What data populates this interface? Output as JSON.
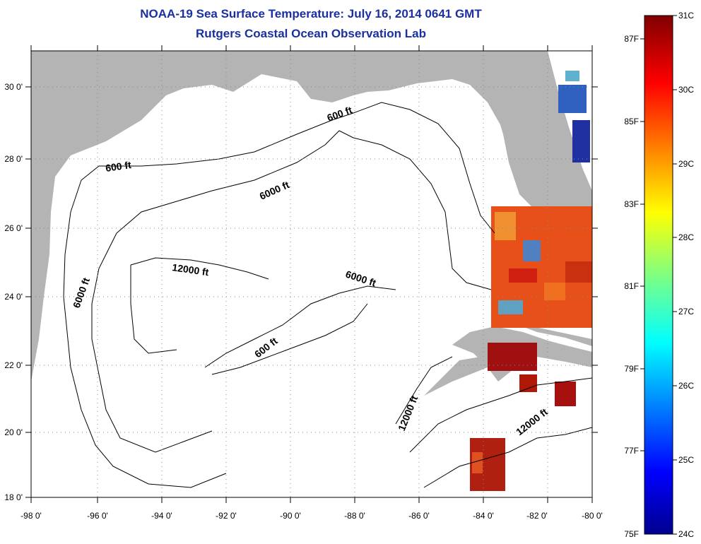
{
  "title": "NOAA-19 Sea Surface Temperature:  July 16, 2014 0641 GMT",
  "subtitle": "Rutgers Coastal Ocean Observation Lab",
  "map": {
    "lon_ticks": [
      "-98 0'",
      "-96 0'",
      "-94 0'",
      "-92 0'",
      "-90 0'",
      "-88 0'",
      "-86 0'",
      "-84 0'",
      "-82 0'",
      "-80 0'"
    ],
    "lat_ticks": [
      "30 0'",
      "28 0'",
      "26 0'",
      "24 0'",
      "22 0'",
      "20 0'",
      "18 0'"
    ],
    "contour_labels": {
      "c600_north": "600 ft",
      "c600_nw": "600 ft",
      "c6000_north": "6000 ft",
      "c6000_west": "6000 ft",
      "c12000_central": "12000 ft",
      "c6000_south": "6000 ft",
      "c600_south": "600 ft",
      "c12000_straits": "12000 ft",
      "c12000_caribbean": "12000 ft"
    },
    "colors": {
      "land": "#b4b4b4",
      "water": "#ffffff",
      "contour": "#000000",
      "grid": "#888888"
    }
  },
  "colorbar": {
    "fahrenheit": [
      "87F",
      "85F",
      "83F",
      "81F",
      "79F",
      "77F",
      "75F"
    ],
    "celsius": [
      "31C",
      "30C",
      "29C",
      "28C",
      "27C",
      "26C",
      "25C",
      "24C"
    ],
    "range_c": [
      24,
      31
    ],
    "range_f": [
      75,
      87.8
    ]
  }
}
